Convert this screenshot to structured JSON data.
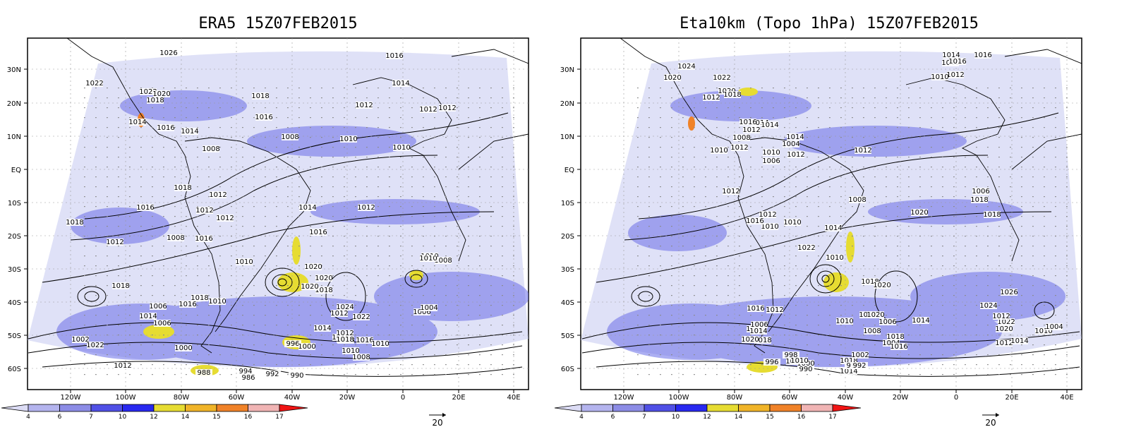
{
  "panels": [
    {
      "title": "ERA5 15Z07FEB2015",
      "contour_labels": [
        "1026",
        "1016",
        "1022",
        "1022",
        "1020",
        "1018",
        "1018",
        "1014",
        "1016",
        "1014",
        "1016",
        "1012",
        "1014",
        "1012",
        "1012",
        "1010",
        "1008",
        "1010",
        "1008",
        "1018",
        "1012",
        "1016",
        "1012",
        "1012",
        "1014",
        "1012",
        "1018",
        "1008",
        "1016",
        "1010",
        "1012",
        "1016",
        "1018",
        "1020",
        "1020",
        "1010",
        "1018",
        "1018",
        "1008",
        "1016",
        "1020",
        "1010",
        "1024",
        "1012",
        "1006",
        "1022",
        "1004",
        "1002",
        "1014",
        "1006",
        "1018",
        "1016",
        "1018",
        "1010",
        "1012",
        "1022",
        "1018",
        "1000",
        "1014",
        "1006",
        "996",
        "1000",
        "1010",
        "1010",
        "1008",
        "1012",
        "988",
        "994",
        "992",
        "986",
        "990"
      ],
      "source_labels": []
    },
    {
      "title": "Eta10km (Topo 1hPa) 15Z07FEB2015",
      "contour_labels": [
        "1014",
        "1016",
        "1024",
        "1022",
        "1012",
        "1010",
        "1020",
        "1020",
        "1018",
        "1012",
        "1010",
        "1016",
        "1014",
        "1014",
        "1016",
        "1014",
        "1012",
        "1010",
        "1012",
        "1008",
        "1012",
        "1006",
        "1004",
        "1012",
        "1010",
        "1012",
        "1012",
        "1010",
        "1014",
        "1010",
        "1008",
        "1006",
        "1018",
        "1016",
        "1010",
        "1020",
        "1018",
        "1022",
        "1018",
        "1020",
        "1012",
        "1014",
        "1016",
        "1006",
        "1014",
        "1018",
        "1020",
        "1010",
        "1012",
        "1008",
        "1014",
        "1020",
        "1022",
        "1012",
        "1026",
        "1024",
        "1020",
        "1006",
        "1004",
        "1016",
        "1018",
        "1012",
        "1014",
        "1010",
        "1004",
        "1018",
        "1014",
        "1002",
        "996",
        "992",
        "1002",
        "1000",
        "998",
        "990",
        "1010",
        "996"
      ]
    }
  ],
  "axes": {
    "lon_ticks": [
      "120W",
      "100W",
      "80W",
      "60W",
      "40W",
      "20W",
      "0",
      "20E",
      "40E"
    ],
    "lat_ticks": [
      "30N",
      "20N",
      "10N",
      "EQ",
      "10S",
      "20S",
      "30S",
      "40S",
      "50S",
      "60S"
    ]
  },
  "colorbar": {
    "ticks": [
      "4",
      "6",
      "7",
      "10",
      "12",
      "14",
      "15",
      "16",
      "17"
    ],
    "colors": [
      "#ffffff",
      "#dcdcf5",
      "#b4b4ee",
      "#8c8ce6",
      "#5050e6",
      "#2828f0",
      "#e6dc32",
      "#f0b428",
      "#f08228",
      "#f0b4b4",
      "#f01414"
    ]
  },
  "vector_ref": {
    "label": "20"
  }
}
